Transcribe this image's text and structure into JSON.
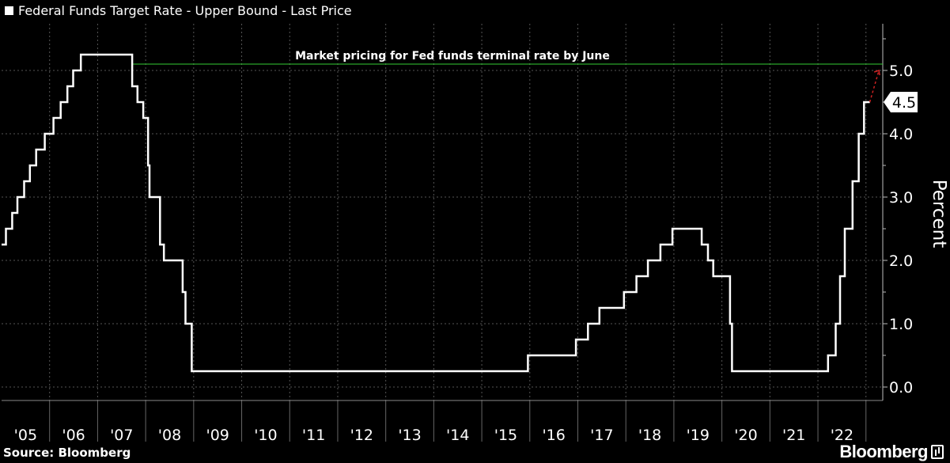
{
  "title": "Federal Funds Target Rate - Upper Bound - Last Price",
  "source": "Source: Bloomberg",
  "brand": "Bloomberg",
  "colors": {
    "background": "#000000",
    "series": "#ffffff",
    "reference_line": "#33cc33",
    "projection": "#cc2222",
    "grid": "#555555"
  },
  "chart_data": {
    "type": "line",
    "step": true,
    "ylabel": "Percent",
    "ylim": [
      -0.2,
      5.75
    ],
    "xlim": [
      2005.0,
      2023.35
    ],
    "yticks": [
      0.0,
      1.0,
      2.0,
      3.0,
      4.0,
      5.0
    ],
    "ytick_labels": [
      "0.0",
      "1.0",
      "2.0",
      "3.0",
      "4.0",
      "5.0"
    ],
    "x_tick_labels": [
      "'05",
      "'06",
      "'07",
      "'08",
      "'09",
      "'10",
      "'11",
      "'12",
      "'13",
      "'14",
      "'15",
      "'16",
      "'17",
      "'18",
      "'19",
      "'20",
      "'21",
      "'22"
    ],
    "x_tick_years": [
      2005,
      2006,
      2007,
      2008,
      2009,
      2010,
      2011,
      2012,
      2013,
      2014,
      2015,
      2016,
      2017,
      2018,
      2019,
      2020,
      2021,
      2022
    ],
    "grid": true,
    "series": [
      {
        "values": [
          [
            2005.0,
            2.25
          ],
          [
            2005.09,
            2.5
          ],
          [
            2005.22,
            2.75
          ],
          [
            2005.33,
            3.0
          ],
          [
            2005.47,
            3.25
          ],
          [
            2005.59,
            3.5
          ],
          [
            2005.72,
            3.75
          ],
          [
            2005.9,
            4.0
          ],
          [
            2006.08,
            4.25
          ],
          [
            2006.23,
            4.5
          ],
          [
            2006.37,
            4.75
          ],
          [
            2006.49,
            5.0
          ],
          [
            2006.65,
            5.25
          ],
          [
            2007.72,
            5.25
          ],
          [
            2007.72,
            4.75
          ],
          [
            2007.83,
            4.5
          ],
          [
            2007.95,
            4.25
          ],
          [
            2008.05,
            3.5
          ],
          [
            2008.08,
            3.0
          ],
          [
            2008.3,
            2.25
          ],
          [
            2008.38,
            2.0
          ],
          [
            2008.77,
            1.5
          ],
          [
            2008.83,
            1.0
          ],
          [
            2008.96,
            0.25
          ],
          [
            2015.96,
            0.25
          ],
          [
            2015.96,
            0.5
          ],
          [
            2016.96,
            0.5
          ],
          [
            2016.96,
            0.75
          ],
          [
            2017.21,
            1.0
          ],
          [
            2017.45,
            1.25
          ],
          [
            2017.96,
            1.5
          ],
          [
            2018.22,
            1.75
          ],
          [
            2018.46,
            2.0
          ],
          [
            2018.72,
            2.25
          ],
          [
            2018.97,
            2.5
          ],
          [
            2019.58,
            2.5
          ],
          [
            2019.58,
            2.25
          ],
          [
            2019.71,
            2.0
          ],
          [
            2019.82,
            1.75
          ],
          [
            2020.17,
            1.0
          ],
          [
            2020.21,
            0.25
          ],
          [
            2022.21,
            0.25
          ],
          [
            2022.21,
            0.5
          ],
          [
            2022.37,
            1.0
          ],
          [
            2022.46,
            1.75
          ],
          [
            2022.56,
            2.5
          ],
          [
            2022.72,
            3.25
          ],
          [
            2022.85,
            4.0
          ],
          [
            2022.96,
            4.5
          ],
          [
            2023.08,
            4.5
          ]
        ]
      }
    ],
    "reference_line": {
      "y": 5.1,
      "label": "Market pricing for Fed funds terminal rate by June"
    },
    "projection": {
      "from": [
        2023.08,
        4.5
      ],
      "to": [
        2023.27,
        5.0
      ]
    },
    "last_value_label": "4.5"
  }
}
